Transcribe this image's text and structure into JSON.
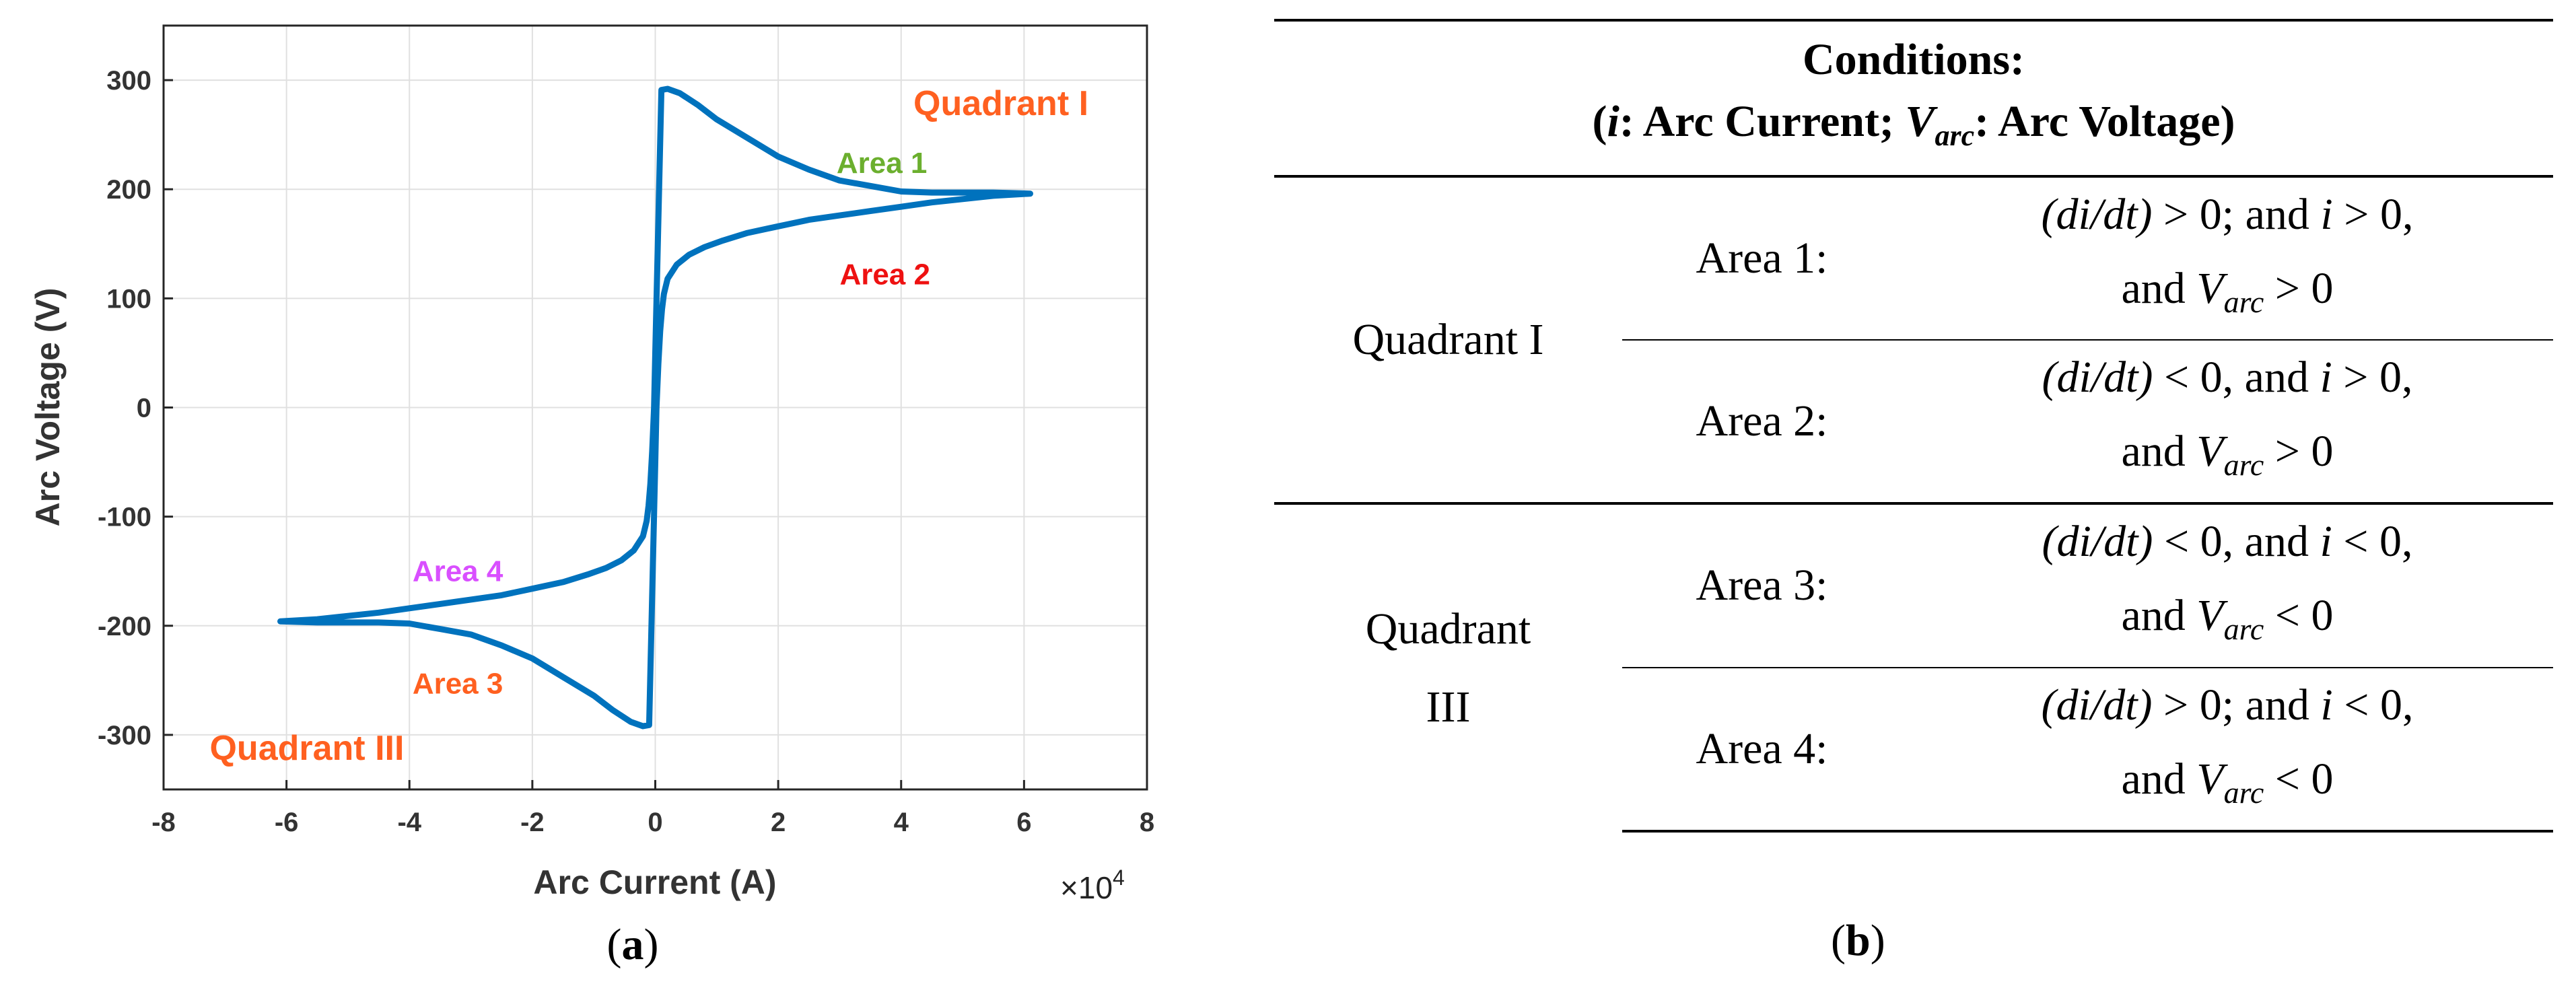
{
  "chart_data": {
    "type": "line",
    "xlabel": "Arc Current (A)",
    "ylabel": "Arc Voltage (V)",
    "x_multiplier_label": "×10",
    "x_multiplier_exp": "4",
    "xlim": [
      -8,
      8
    ],
    "ylim": [
      -350,
      350
    ],
    "xticks": [
      "-8",
      "-6",
      "-4",
      "-2",
      "0",
      "2",
      "4",
      "6",
      "8"
    ],
    "yticks": [
      "300",
      "200",
      "100",
      "0",
      "-100",
      "-200",
      "-300"
    ],
    "grid": true,
    "line_color": "#0072BD",
    "series": [
      {
        "x": [
          0.0,
          0.02,
          0.05,
          0.08,
          0.11,
          0.14,
          0.2,
          0.35,
          0.55,
          0.8,
          1.1,
          1.5,
          2.0,
          2.5,
          3.0,
          3.5,
          4.0,
          4.5,
          5.0,
          5.5,
          6.1,
          5.5,
          5.0,
          4.5,
          4.0,
          3.5,
          3.0,
          2.5,
          2.0,
          1.5,
          1.0,
          0.7,
          0.4,
          0.2,
          0.1,
          0.0,
          -0.02,
          -0.05,
          -0.08,
          -0.11,
          -0.14,
          -0.2,
          -0.35,
          -0.55,
          -0.8,
          -1.1,
          -1.5,
          -2.0,
          -2.5,
          -3.0,
          -3.5,
          -4.0,
          -4.5,
          -5.0,
          -5.5,
          -6.1,
          -5.5,
          -5.0,
          -4.5,
          -4.0,
          -3.5,
          -3.0,
          -2.5,
          -2.0,
          -1.5,
          -1.0,
          -0.7,
          -0.4,
          -0.2,
          -0.1,
          0.0
        ],
        "y": [
          -50,
          0,
          40,
          70,
          90,
          104,
          118,
          131,
          140,
          147,
          153,
          160,
          166,
          172,
          176,
          180,
          184,
          188,
          191,
          194,
          196,
          197,
          197,
          197,
          198,
          203,
          208,
          218,
          230,
          247,
          264,
          277,
          288,
          292,
          291,
          50,
          0,
          -40,
          -70,
          -90,
          -104,
          -118,
          -131,
          -140,
          -147,
          -153,
          -160,
          -166,
          -172,
          -176,
          -180,
          -184,
          -188,
          -191,
          -194,
          -196,
          -197,
          -197,
          -197,
          -198,
          -203,
          -208,
          -218,
          -230,
          -247,
          -264,
          -277,
          -288,
          -292,
          -291,
          -50
        ]
      }
    ],
    "annotations": [
      {
        "text": "Quadrant I",
        "x": 4.2,
        "y": 268,
        "color": "#FF6020"
      },
      {
        "text": "Area 1",
        "x": 2.95,
        "y": 215,
        "color": "#6BAF2E"
      },
      {
        "text": "Area 2",
        "x": 3.0,
        "y": 113,
        "color": "#EE1111"
      },
      {
        "text": "Area 4",
        "x": -3.95,
        "y": -159,
        "color": "#D94FFF"
      },
      {
        "text": "Area 3",
        "x": -3.95,
        "y": -262,
        "color": "#FF6020"
      },
      {
        "text": "Quadrant III",
        "x": -7.25,
        "y": -323,
        "color": "#FF6020"
      }
    ],
    "caption_a_label": "a"
  },
  "table": {
    "header_line1": "Conditions:",
    "header_line2": {
      "open": "(",
      "i": "i",
      "i_desc": ": Arc Current; ",
      "v": "V",
      "v_sub": "arc",
      "v_desc": ": Arc Voltage)"
    },
    "groups": [
      {
        "quadrant": "Quadrant I",
        "rows": [
          {
            "area": "Area 1:",
            "cond1_a": "(di/dt)",
            "cond1_b": " > 0; and ",
            "cond1_c": "i",
            "cond1_d": " > 0,",
            "cond2_a": "and ",
            "cond2_v": "V",
            "cond2_sub": "arc",
            "cond2_b": " > 0"
          },
          {
            "area": "Area 2:",
            "cond1_a": "(di/dt)",
            "cond1_b": " < 0, and ",
            "cond1_c": "i",
            "cond1_d": " > 0,",
            "cond2_a": "and ",
            "cond2_v": "V",
            "cond2_sub": "arc",
            "cond2_b": " > 0"
          }
        ]
      },
      {
        "quadrant_line1": "Quadrant",
        "quadrant_line2": "III",
        "rows": [
          {
            "area": "Area 3:",
            "cond1_a": "(di/dt)",
            "cond1_b": " < 0, and ",
            "cond1_c": "i",
            "cond1_d": " < 0,",
            "cond2_a": "and ",
            "cond2_v": "V",
            "cond2_sub": "arc",
            "cond2_b": " < 0"
          },
          {
            "area": "Area 4:",
            "cond1_a": "(di/dt)",
            "cond1_b": " > 0; and ",
            "cond1_c": "i",
            "cond1_d": " < 0,",
            "cond2_a": "and ",
            "cond2_v": "V",
            "cond2_sub": "arc",
            "cond2_b": " < 0"
          }
        ]
      }
    ],
    "caption_b_label": "b"
  },
  "captions": {
    "open": "(",
    "close": ")"
  }
}
